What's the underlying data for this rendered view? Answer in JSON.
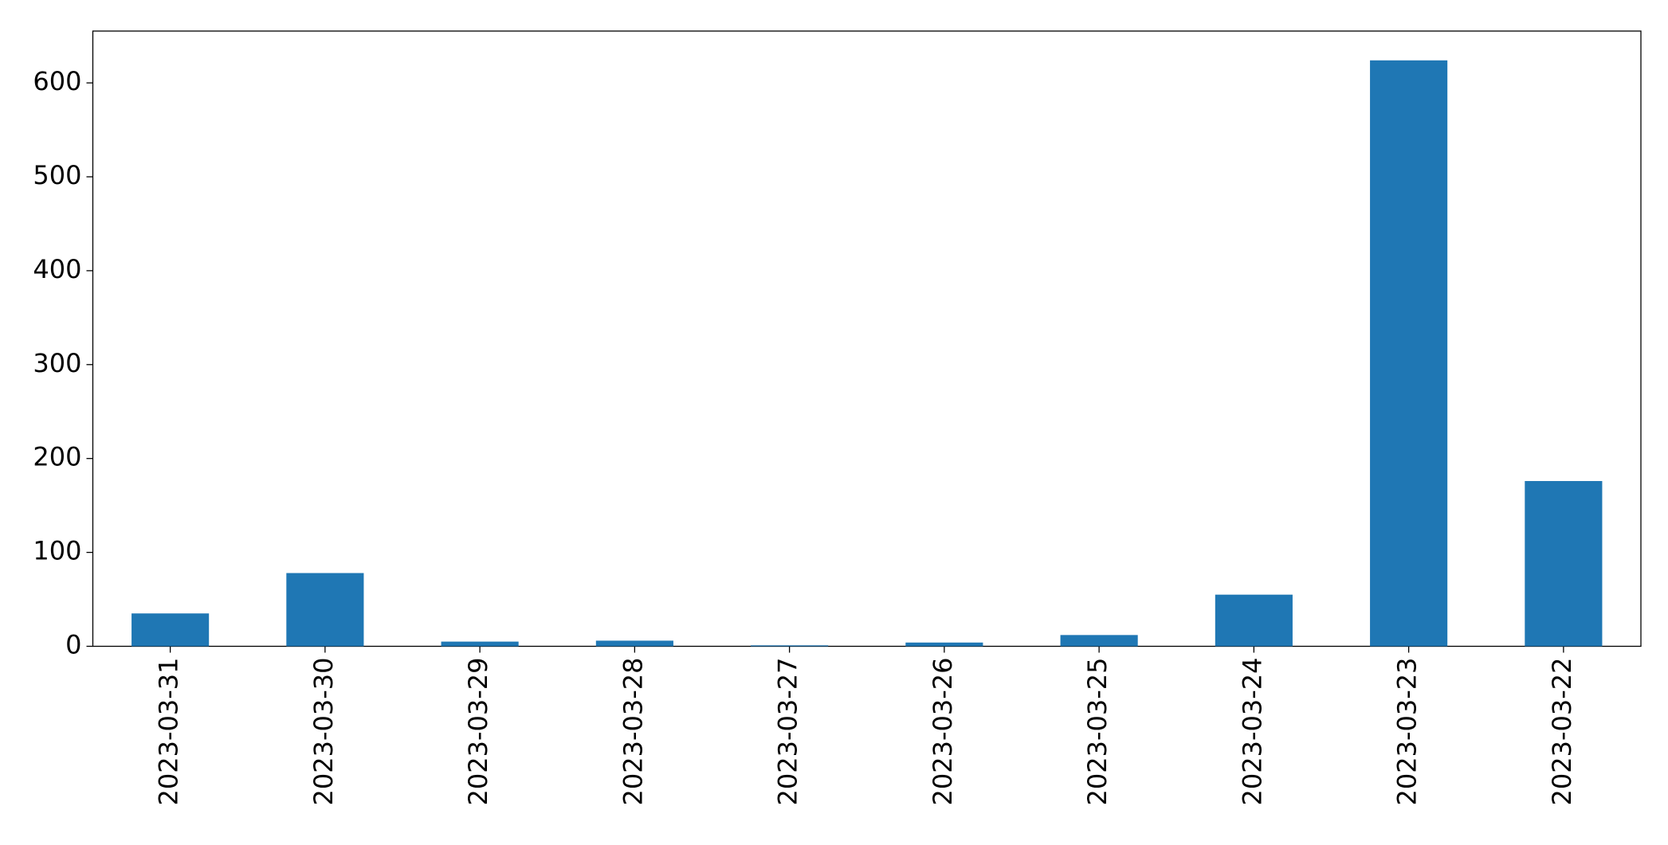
{
  "chart_data": {
    "type": "bar",
    "categories": [
      "2023-03-31",
      "2023-03-30",
      "2023-03-29",
      "2023-03-28",
      "2023-03-27",
      "2023-03-26",
      "2023-03-25",
      "2023-03-24",
      "2023-03-23",
      "2023-03-22"
    ],
    "values": [
      35,
      78,
      5,
      6,
      1,
      4,
      12,
      55,
      624,
      176
    ],
    "color": "#1f77b4",
    "ylim": [
      0,
      655.2
    ],
    "yticks": [
      0,
      100,
      200,
      300,
      400,
      500,
      600
    ],
    "grid": false
  }
}
